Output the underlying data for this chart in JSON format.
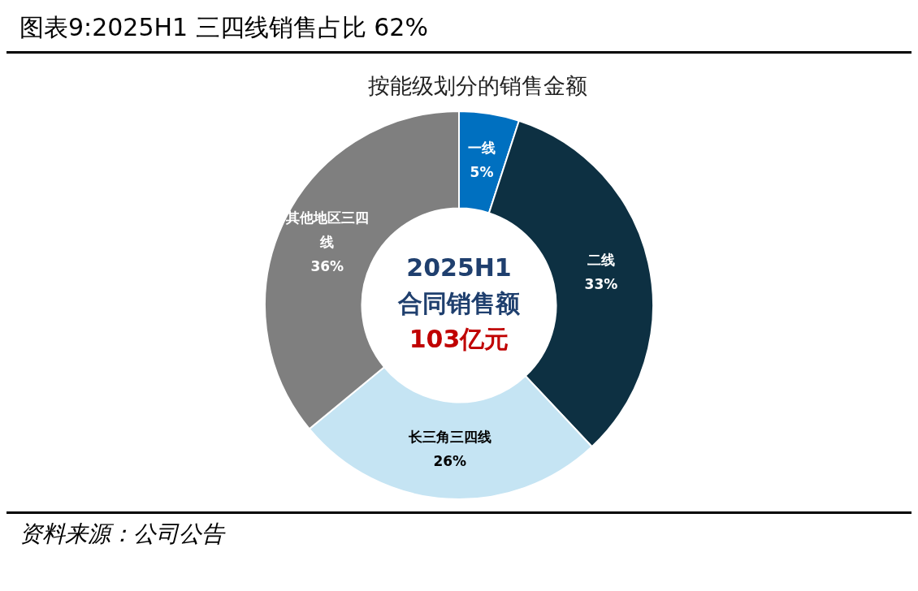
{
  "chart_data": {
    "type": "donut",
    "title": "图表9:2025H1 三四线销售占比 62%",
    "subtitle": "按能级划分的销售金额",
    "categories": [
      "一线",
      "二线",
      "长三角三四线",
      "其他地区三四线"
    ],
    "values": [
      5,
      33,
      26,
      36
    ],
    "value_labels": [
      "5%",
      "33%",
      "26%",
      "36%"
    ],
    "colors": [
      "#0070c0",
      "#0d3042",
      "#c5e4f3",
      "#7f7f7f"
    ],
    "legend": false,
    "annotations": [
      "2025H1",
      "合同销售额",
      "103亿元",
      "资料来源：公司公告"
    ]
  }
}
